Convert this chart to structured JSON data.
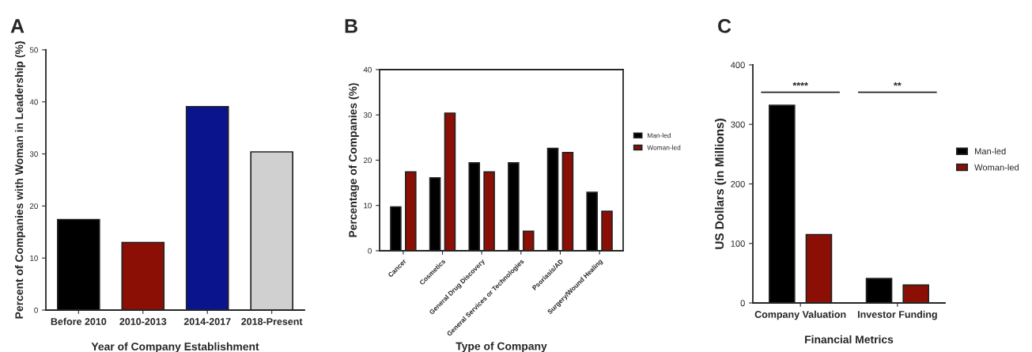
{
  "chart_data": [
    {
      "type": "bar",
      "title": "A",
      "xlabel": "Year of Company Establishment",
      "ylabel": "Percent of Companies with Woman in Leadership (%)",
      "categories": [
        "Before 2010",
        "2010-2013",
        "2014-2017",
        "2018-Present"
      ],
      "values": [
        17.4,
        13.0,
        39.1,
        30.4
      ],
      "colors": [
        "#000000",
        "#8b0f04",
        "#0a148c",
        "#d0d0d0"
      ],
      "ylim": [
        0,
        50
      ],
      "yticks": [
        0,
        10,
        20,
        30,
        40,
        50
      ],
      "grid": false
    },
    {
      "type": "bar",
      "title": "B",
      "xlabel": "Type of Company",
      "ylabel": "Percentage of Companies (%)",
      "categories": [
        "Cancer",
        "Cosmetics",
        "General Drug Discovery",
        "General Services or Technologies",
        "Psoriasis/AD",
        "Surgery/Wound Healing"
      ],
      "series": [
        {
          "name": "Man-led",
          "color": "#000000",
          "values": [
            9.7,
            16.1,
            19.4,
            19.4,
            22.6,
            12.9
          ]
        },
        {
          "name": "Woman-led",
          "color": "#8b0f04",
          "values": [
            17.4,
            30.4,
            17.4,
            4.3,
            21.7,
            8.7
          ]
        }
      ],
      "ylim": [
        0,
        40
      ],
      "yticks": [
        0,
        10,
        20,
        30,
        40
      ],
      "legend": "right",
      "grid": false
    },
    {
      "type": "bar",
      "title": "C",
      "xlabel": "Financial Metrics",
      "ylabel": "US Dollars (in Millions)",
      "categories": [
        "Company Valuation",
        "Investor Funding"
      ],
      "series": [
        {
          "name": "Man-led",
          "color": "#000000",
          "values": [
            332,
            41
          ]
        },
        {
          "name": "Woman-led",
          "color": "#8b0f04",
          "values": [
            115,
            30
          ]
        }
      ],
      "ylim": [
        0,
        400
      ],
      "yticks": [
        0,
        100,
        200,
        300,
        400
      ],
      "legend": "right",
      "grid": false,
      "annotations": [
        "****",
        "**"
      ]
    }
  ]
}
